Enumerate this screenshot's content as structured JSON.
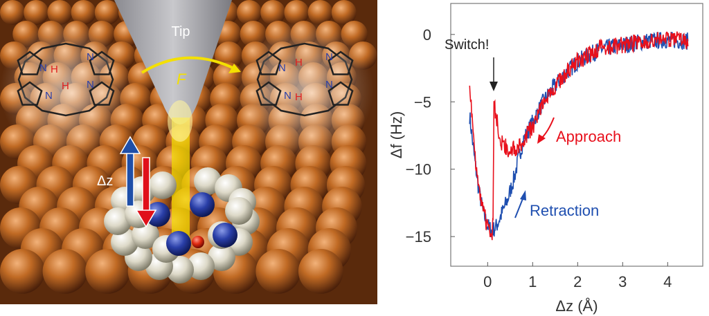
{
  "illustration": {
    "tip_label": "Tip",
    "force_label": "F",
    "dz_label": "Δz",
    "atom_n": "N",
    "atom_h": "H",
    "colors": {
      "copper": "#b8641e",
      "tip": "#a9a9ad",
      "force": "#f4e000",
      "nitrogen": "#2a3fa8",
      "hydrogen_label": "#e02020",
      "up_arrow": "#1f4fa8",
      "down_arrow": "#e0101a"
    }
  },
  "chart_data": {
    "type": "line",
    "xlabel": "Δz (Å)",
    "ylabel": "Δf (Hz)",
    "xlim": [
      -0.82,
      4.78
    ],
    "ylim": [
      -17.2,
      2.3
    ],
    "xticks": [
      0,
      1,
      2,
      3,
      4
    ],
    "yticks": [
      0,
      -5,
      -10,
      -15
    ],
    "annotations": {
      "switch": "Switch!",
      "approach": "Approach",
      "retraction": "Retraction"
    },
    "series": [
      {
        "name": "Approach",
        "color": "#e8101c",
        "x": [
          4.45,
          4.0,
          3.5,
          3.0,
          2.5,
          2.0,
          1.7,
          1.4,
          1.2,
          1.0,
          0.8,
          0.65,
          0.5,
          0.3,
          0.18,
          0.14,
          0.12,
          0.1,
          0.0,
          -0.1,
          -0.2,
          -0.3,
          -0.4
        ],
        "y": [
          -0.5,
          -0.3,
          -0.5,
          -0.8,
          -1.0,
          -2.0,
          -3.0,
          -4.2,
          -5.5,
          -6.8,
          -7.8,
          -8.4,
          -8.6,
          -8.0,
          -6.0,
          -5.0,
          -14.0,
          -14.8,
          -14.3,
          -13.0,
          -11.0,
          -8.5,
          -3.8
        ]
      },
      {
        "name": "Retraction",
        "color": "#1f4fb0",
        "x": [
          -0.4,
          -0.3,
          -0.2,
          -0.1,
          0.0,
          0.1,
          0.2,
          0.3,
          0.45,
          0.6,
          0.7,
          0.8,
          1.0,
          1.2,
          1.4,
          1.7,
          2.0,
          2.5,
          3.0,
          3.5,
          4.0,
          4.45
        ],
        "y": [
          -6.0,
          -9.0,
          -11.5,
          -13.2,
          -14.2,
          -14.6,
          -14.2,
          -13.4,
          -12.2,
          -10.5,
          -9.0,
          -7.8,
          -6.5,
          -5.2,
          -4.2,
          -3.0,
          -2.0,
          -1.1,
          -0.8,
          -0.5,
          -0.4,
          -0.5
        ]
      }
    ]
  }
}
